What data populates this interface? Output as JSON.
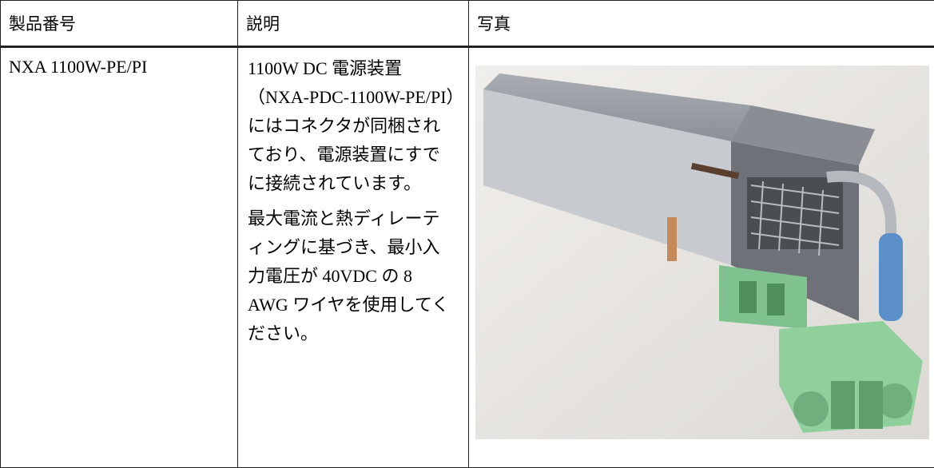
{
  "table": {
    "headers": [
      "製品番号",
      "説明",
      "写真"
    ],
    "rows": [
      {
        "product_number": "NXA 1100W-PE/PI",
        "description": [
          "1100W DC 電源装置（NXA-PDC-1100W-PE/PI）にはコネクタが同梱されており、電源装置にすでに接続されています。",
          "最大電流と熱ディレーティングに基づき、最小入力電圧が 40VDC の 8 AWG ワイヤを使用してください。"
        ]
      }
    ]
  }
}
